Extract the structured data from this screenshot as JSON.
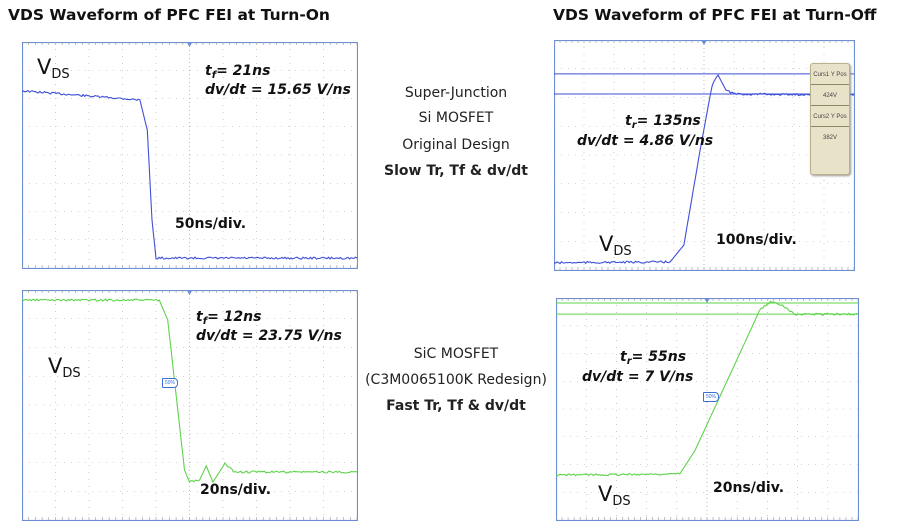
{
  "titles": {
    "turn_on": "VDS Waveform of PFC FEI at Turn-On",
    "turn_off": "VDS Waveform of PFC FEI at Turn-Off"
  },
  "middle": {
    "top": [
      "Super-Junction",
      "Si MOSFET",
      "Original Design",
      "Slow Tr, Tf & dv/dt"
    ],
    "bottom": [
      "SiC MOSFET",
      "(C3M0065100K Redesign)",
      "Fast Tr, Tf & dv/dt"
    ]
  },
  "colors": {
    "si_trace": "#3f4fd8",
    "sic_trace": "#5ed44a",
    "grid": "#a9a9a9",
    "frame": "#6b8ed6"
  },
  "chart_data": [
    {
      "id": "si_turn_on",
      "type": "line",
      "title": "VDS Waveform of PFC FEI at Turn-On",
      "label": {
        "v": "V",
        "sub": "DS"
      },
      "meas": {
        "t": "t",
        "t_sub": "f",
        "t_val": "= 21ns",
        "dvdt": "dv/dt = 15.65 V/ns"
      },
      "timebase": "50ns/div.",
      "xlim": [
        0,
        500
      ],
      "ylim": [
        0,
        8
      ],
      "grid": true,
      "divisions": [
        10,
        8
      ],
      "x": [
        0,
        176,
        187,
        194,
        200,
        500
      ],
      "y": [
        6.27,
        5.95,
        4.88,
        1.7,
        0.35,
        0.35
      ]
    },
    {
      "id": "si_turn_off",
      "type": "line",
      "title": "VDS Waveform of PFC FEI at Turn-Off",
      "label": {
        "v": "V",
        "sub": "DS"
      },
      "meas": {
        "t": "t",
        "t_sub": "r",
        "t_val": "= 135ns",
        "dvdt": "dv/dt = 4.86 V/ns"
      },
      "timebase": "100ns/div.",
      "xlim": [
        0,
        1000
      ],
      "ylim": [
        0,
        8
      ],
      "grid": true,
      "divisions": [
        10,
        8
      ],
      "x": [
        0,
        387,
        433,
        487,
        527,
        547,
        573,
        603,
        1000
      ],
      "y": [
        0.25,
        0.28,
        0.87,
        4.17,
        6.43,
        6.78,
        6.26,
        6.12,
        6.09
      ],
      "cursors": [
        6.82,
        6.12
      ],
      "cursor_readout": [
        {
          "label": "Curs1 Y Pos",
          "value": "424V"
        },
        {
          "label": "Curs2 Y Pos",
          "value": "382V"
        }
      ]
    },
    {
      "id": "sic_turn_on",
      "type": "line",
      "label": {
        "v": "V",
        "sub": "DS"
      },
      "meas": {
        "t": "t",
        "t_sub": "f",
        "t_val": "= 12ns",
        "dvdt": "dv/dt = 23.75 V/ns"
      },
      "timebase": "20ns/div.",
      "xlim": [
        0,
        200
      ],
      "ylim": [
        0,
        8
      ],
      "grid": true,
      "divisions": [
        10,
        8
      ],
      "x": [
        0,
        82,
        87,
        97,
        100,
        106,
        110,
        114,
        121,
        127,
        200
      ],
      "y": [
        7.65,
        7.65,
        6.96,
        1.74,
        1.32,
        1.39,
        1.88,
        1.32,
        1.95,
        1.67,
        1.67
      ],
      "marker": "50%"
    },
    {
      "id": "sic_turn_off",
      "type": "line",
      "label": {
        "v": "V",
        "sub": "DS"
      },
      "meas": {
        "t": "t",
        "t_sub": "r",
        "t_val": "= 55ns",
        "dvdt": "dv/dt = 7 V/ns"
      },
      "timebase": "20ns/div.",
      "xlim": [
        0,
        200
      ],
      "ylim": [
        0,
        8
      ],
      "grid": true,
      "divisions": [
        10,
        8
      ],
      "x": [
        0,
        82,
        92,
        135,
        142,
        150,
        158,
        200
      ],
      "y": [
        1.62,
        1.66,
        2.5,
        7.57,
        7.86,
        7.75,
        7.42,
        7.42
      ],
      "cursors": [
        7.82,
        7.42
      ],
      "marker": "50%"
    }
  ]
}
